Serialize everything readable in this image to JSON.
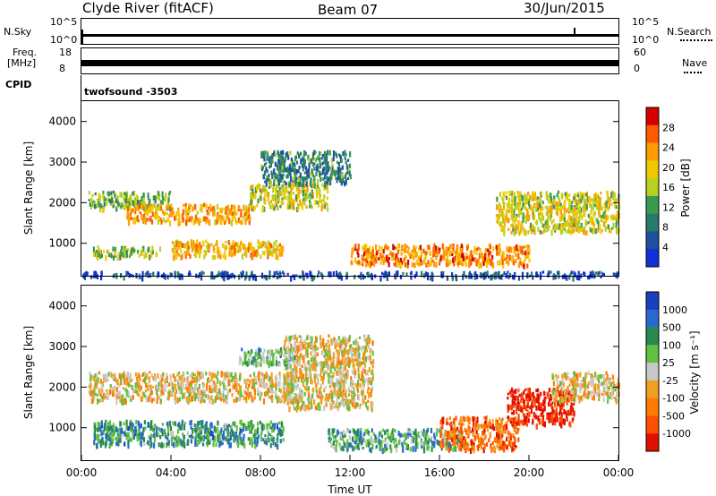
{
  "header": {
    "station": "Clyde River (fitACF)",
    "beam": "Beam 07",
    "date": "30/Jun/2015"
  },
  "top_panels": {
    "nsky_label": "N.Sky",
    "nsky_ticks": [
      "10^5",
      "10^0"
    ],
    "nsearch_label": "N.Search",
    "nsearch_ticks": [
      "10^5",
      "10^0"
    ],
    "freq_label_line1": "Freq.",
    "freq_label_line2": "[MHz]",
    "freq_ticks": [
      "18",
      "8"
    ],
    "nave_label": "Nave",
    "nave_ticks": [
      "60",
      "0"
    ],
    "cpid_label": "CPID",
    "cpid_value": "twofsound  -3503"
  },
  "chart_data": [
    {
      "type": "heatmap",
      "title": "",
      "ylabel": "Slant Range [km]",
      "xlabel": "",
      "ylim": [
        200,
        4500
      ],
      "xlim": [
        0,
        24
      ],
      "y_ticks": [
        "1000",
        "2000",
        "3000",
        "4000"
      ],
      "colorbar_label": "Power [dB]",
      "colorbar_ticks": [
        "28",
        "24",
        "20",
        "16",
        "12",
        "8",
        "4"
      ],
      "colorbar_colors": [
        "#d40000",
        "#ff5a00",
        "#ff9a00",
        "#f0c800",
        "#b8d020",
        "#3a9a50",
        "#2a7a6a",
        "#1f4fa0",
        "#1030d8"
      ],
      "regions": [
        {
          "t0": 0.3,
          "t1": 4.0,
          "r0": 1900,
          "r1": 2300,
          "level": 0.45
        },
        {
          "t0": 2.0,
          "t1": 7.5,
          "r0": 1550,
          "r1": 2000,
          "level": 0.7
        },
        {
          "t0": 7.5,
          "t1": 11.0,
          "r0": 1900,
          "r1": 2500,
          "level": 0.55
        },
        {
          "t0": 4.0,
          "t1": 9.0,
          "r0": 700,
          "r1": 1100,
          "level": 0.65
        },
        {
          "t0": 0.5,
          "t1": 3.5,
          "r0": 700,
          "r1": 950,
          "level": 0.5
        },
        {
          "t0": 12.0,
          "t1": 20.0,
          "r0": 500,
          "r1": 1000,
          "level": 0.75
        },
        {
          "t0": 18.5,
          "t1": 24.0,
          "r0": 1300,
          "r1": 2300,
          "level": 0.55
        },
        {
          "t0": 8.0,
          "t1": 12.0,
          "r0": 2500,
          "r1": 3300,
          "level": 0.3
        },
        {
          "t0": 0.0,
          "t1": 24.0,
          "r0": 200,
          "r1": 330,
          "level": 0.15
        }
      ]
    },
    {
      "type": "heatmap",
      "title": "",
      "ylabel": "Slant Range [km]",
      "xlabel": "Time UT",
      "ylim": [
        200,
        4500
      ],
      "xlim": [
        0,
        24
      ],
      "y_ticks": [
        "1000",
        "2000",
        "3000",
        "4000"
      ],
      "x_ticks": [
        "00:00",
        "04:00",
        "08:00",
        "12:00",
        "16:00",
        "20:00",
        "00:00"
      ],
      "colorbar_label": "Velocity  [m s⁻¹]",
      "colorbar_ticks": [
        "1000",
        "500",
        "100",
        "25",
        "-25",
        "-100",
        "-500",
        "-1000"
      ],
      "colorbar_colors": [
        "#1a3fc0",
        "#2a6ad0",
        "#2a8a50",
        "#60c040",
        "#c8c8c8",
        "#f0a020",
        "#ff7a00",
        "#ff5000",
        "#e01000"
      ],
      "regions": [
        {
          "t0": 0.3,
          "t1": 9.5,
          "r0": 1700,
          "r1": 2400,
          "level": 0.45
        },
        {
          "t0": 0.5,
          "t1": 9.0,
          "r0": 600,
          "r1": 1200,
          "level": 0.72
        },
        {
          "t0": 9.0,
          "t1": 13.0,
          "r0": 1500,
          "r1": 3300,
          "level": 0.45
        },
        {
          "t0": 11.0,
          "t1": 17.0,
          "r0": 500,
          "r1": 1000,
          "level": 0.7
        },
        {
          "t0": 16.0,
          "t1": 19.5,
          "r0": 500,
          "r1": 1300,
          "level": 0.25
        },
        {
          "t0": 19.0,
          "t1": 22.0,
          "r0": 1100,
          "r1": 2000,
          "level": 0.05
        },
        {
          "t0": 21.0,
          "t1": 24.0,
          "r0": 1700,
          "r1": 2400,
          "level": 0.45
        },
        {
          "t0": 7.0,
          "t1": 9.5,
          "r0": 2600,
          "r1": 3000,
          "level": 0.62
        }
      ]
    }
  ]
}
